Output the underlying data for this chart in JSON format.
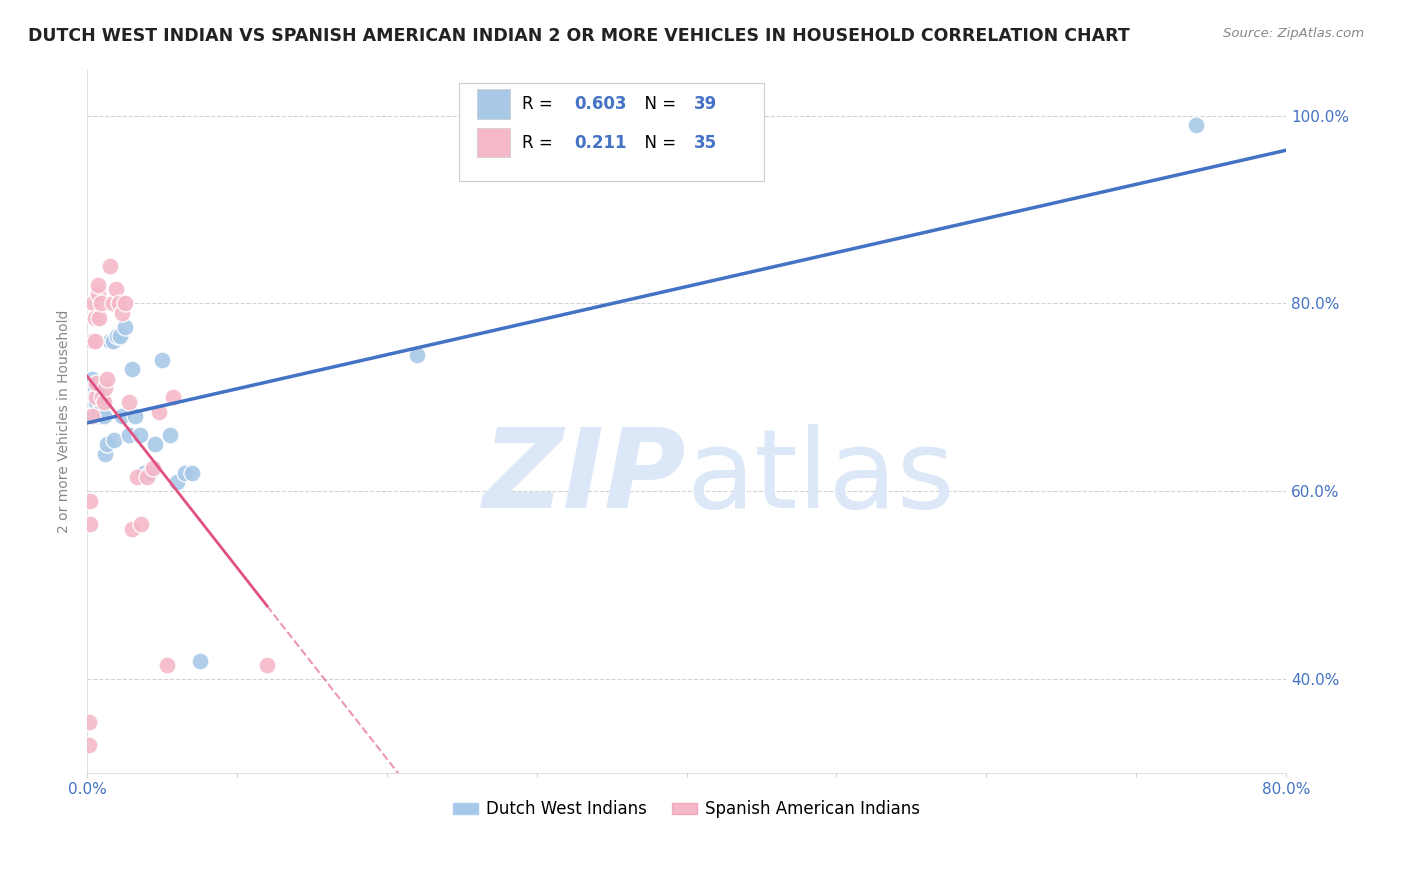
{
  "title": "DUTCH WEST INDIAN VS SPANISH AMERICAN INDIAN 2 OR MORE VEHICLES IN HOUSEHOLD CORRELATION CHART",
  "source": "Source: ZipAtlas.com",
  "ylabel": "2 or more Vehicles in Household",
  "xlim": [
    0.0,
    0.8
  ],
  "ylim": [
    0.3,
    1.05
  ],
  "xticks": [
    0.0,
    0.1,
    0.2,
    0.3,
    0.4,
    0.5,
    0.6,
    0.7,
    0.8
  ],
  "xticklabels": [
    "0.0%",
    "",
    "",
    "",
    "",
    "",
    "",
    "",
    "80.0%"
  ],
  "ytick_positions": [
    0.4,
    0.6,
    0.8,
    1.0
  ],
  "yticklabels": [
    "40.0%",
    "60.0%",
    "80.0%",
    "100.0%"
  ],
  "blue_color": "#a8c8e8",
  "pink_color": "#f4b8c8",
  "blue_line_color": "#4472c4",
  "pink_line_color": "#e05080",
  "watermark_color": "#dce8f8",
  "dutch_x": [
    0.002,
    0.003,
    0.003,
    0.004,
    0.005,
    0.005,
    0.006,
    0.006,
    0.007,
    0.008,
    0.008,
    0.009,
    0.01,
    0.01,
    0.011,
    0.012,
    0.013,
    0.015,
    0.017,
    0.018,
    0.02,
    0.022,
    0.023,
    0.025,
    0.028,
    0.03,
    0.032,
    0.035,
    0.038,
    0.042,
    0.045,
    0.05,
    0.055,
    0.06,
    0.065,
    0.07,
    0.075,
    0.22,
    0.74
  ],
  "dutch_y": [
    0.7,
    0.695,
    0.72,
    0.68,
    0.71,
    0.7,
    0.69,
    0.695,
    0.68,
    0.705,
    0.685,
    0.71,
    0.7,
    0.69,
    0.68,
    0.64,
    0.65,
    0.76,
    0.76,
    0.655,
    0.765,
    0.765,
    0.68,
    0.775,
    0.66,
    0.73,
    0.68,
    0.66,
    0.62,
    0.62,
    0.65,
    0.74,
    0.66,
    0.61,
    0.62,
    0.62,
    0.42,
    0.745,
    0.99
  ],
  "spanish_x": [
    0.001,
    0.001,
    0.002,
    0.002,
    0.003,
    0.003,
    0.004,
    0.005,
    0.005,
    0.006,
    0.006,
    0.007,
    0.007,
    0.008,
    0.009,
    0.01,
    0.011,
    0.012,
    0.013,
    0.015,
    0.017,
    0.019,
    0.021,
    0.023,
    0.025,
    0.028,
    0.03,
    0.033,
    0.036,
    0.04,
    0.044,
    0.048,
    0.053,
    0.057,
    0.12
  ],
  "spanish_y": [
    0.33,
    0.355,
    0.565,
    0.59,
    0.68,
    0.76,
    0.8,
    0.76,
    0.785,
    0.7,
    0.715,
    0.81,
    0.82,
    0.785,
    0.8,
    0.7,
    0.695,
    0.71,
    0.72,
    0.84,
    0.8,
    0.815,
    0.8,
    0.79,
    0.8,
    0.695,
    0.56,
    0.615,
    0.565,
    0.615,
    0.625,
    0.685,
    0.415,
    0.7,
    0.415
  ]
}
